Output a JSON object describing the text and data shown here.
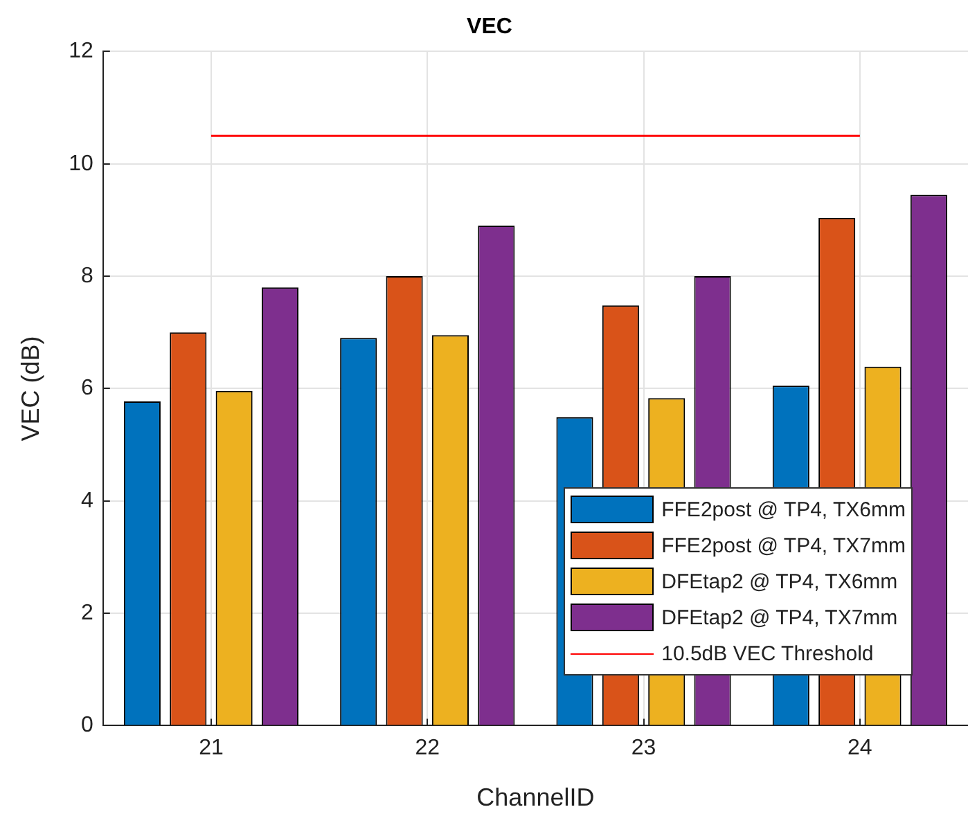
{
  "chart_data": {
    "type": "bar",
    "title": "VEC",
    "xlabel": "ChannelID",
    "ylabel": "VEC (dB)",
    "categories": [
      "21",
      "22",
      "23",
      "24"
    ],
    "series": [
      {
        "name": "FFE2post @ TP4, TX6mm",
        "color": "#0072bd",
        "values": [
          5.77,
          6.9,
          5.49,
          6.05
        ]
      },
      {
        "name": "FFE2post @ TP4, TX7mm",
        "color": "#d95319",
        "values": [
          7.0,
          8.0,
          7.48,
          9.04
        ]
      },
      {
        "name": "DFEtap2 @ TP4, TX6mm",
        "color": "#edb120",
        "values": [
          5.96,
          6.95,
          5.83,
          6.39
        ]
      },
      {
        "name": "DFEtap2 @ TP4, TX7mm",
        "color": "#7e2f8e",
        "values": [
          7.8,
          8.9,
          8.0,
          9.45
        ]
      },
      {
        "name": "10.5dB VEC Threshold",
        "type": "line",
        "color": "#ff0000",
        "marker": "none",
        "values": [
          10.5,
          10.5,
          10.5,
          10.5
        ]
      }
    ],
    "ylim": [
      0,
      12
    ],
    "yticks": [
      0,
      2,
      4,
      6,
      8,
      10,
      12
    ],
    "grid": true,
    "legend": "bottom right"
  }
}
